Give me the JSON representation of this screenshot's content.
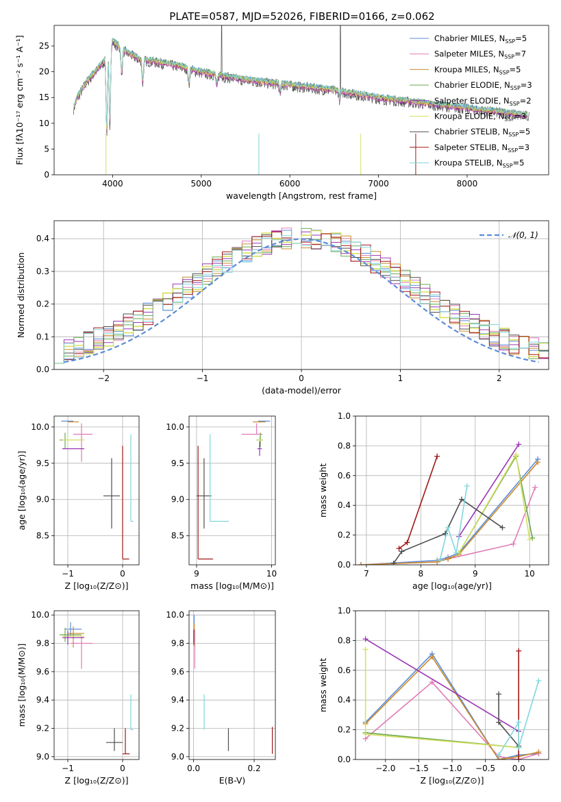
{
  "title": "PLATE=0587, MJD=52026, FIBERID=0166, z=0.062",
  "colors": {
    "Chabrier MILES": "#5b8bd8",
    "Salpeter MILES": "#e07bb5",
    "Kroupa MILES": "#c98a2c",
    "Chabrier ELODIE": "#6aa84f",
    "Salpeter ELODIE": "#9b33b5",
    "Kroupa ELODIE": "#d7e060",
    "Chabrier STELIB": "#4d4d4d",
    "Salpeter STELIB": "#a01515",
    "Kroupa STELIB": "#7fd6dc"
  },
  "chart_data": [
    {
      "id": "spectrum",
      "type": "line",
      "xlabel": "wavelength [Angstrom, rest frame]",
      "ylabel": "Flux [fλ10⁻¹⁷ erg cm⁻² s⁻¹ A⁻¹]",
      "xlim": [
        3340,
        8920
      ],
      "ylim": [
        0,
        29
      ],
      "xticks": [
        4000,
        5000,
        6000,
        7000,
        8000
      ],
      "yticks": [
        0,
        5,
        10,
        15,
        20,
        25
      ],
      "legend_position": "top-right",
      "legend": [
        "Chabrier MILES, N_SSP=5",
        "Salpeter MILES, N_SSP=7",
        "Kroupa MILES, N_SSP=5",
        "Chabrier ELODIE, N_SSP=3",
        "Salpeter ELODIE, N_SSP=2",
        "Kroupa ELODIE, N_SSP=3",
        "Chabrier STELIB, N_SSP=5",
        "Salpeter STELIB, N_SSP=3",
        "Kroupa STELIB, N_SSP=5"
      ],
      "continuum": {
        "x": [
          3560,
          3600,
          3700,
          3800,
          3900,
          3950,
          4000,
          4100,
          4200,
          4300,
          4500,
          4800,
          5000,
          5500,
          6000,
          6500,
          7000,
          7500,
          8000,
          8500,
          8700
        ],
        "y": [
          13,
          15,
          18,
          20,
          22,
          24,
          26,
          24.5,
          23.5,
          22.5,
          22,
          21,
          20,
          18.5,
          17.5,
          16.5,
          15,
          14,
          13,
          12,
          11.5
        ]
      }
    },
    {
      "id": "residuals",
      "type": "step",
      "xlabel": "(data-model)/error",
      "ylabel": "Normed distribution",
      "xlim": [
        -2.5,
        2.5
      ],
      "ylim": [
        0,
        0.455
      ],
      "xticks": [
        -2,
        -1,
        0,
        1,
        2
      ],
      "yticks": [
        0.0,
        0.1,
        0.2,
        0.3,
        0.4
      ],
      "reference_label": "𝒩(0, 1)",
      "legend_position": "top-right"
    },
    {
      "id": "age-vs-Z",
      "type": "errorbar",
      "xlabel": "Z [log₁₀(Z/Z⊙)]",
      "ylabel": "age  [log₁₀(age/yr)]",
      "xlim": [
        -1.25,
        0.3
      ],
      "ylim": [
        8.1,
        10.15
      ],
      "xticks": [
        -1,
        0
      ],
      "yticks": [
        8.5,
        9.0,
        9.5,
        10.0
      ],
      "points": [
        {
          "model": "Chabrier MILES",
          "x": -1.0,
          "xerr": [
            0.12,
            0.1
          ],
          "y": 10.08,
          "yerr": [
            0,
            0
          ]
        },
        {
          "model": "Kroupa MILES",
          "x": -0.9,
          "xerr": [
            0.1,
            0.1
          ],
          "y": 10.07,
          "yerr": [
            0,
            0
          ]
        },
        {
          "model": "Salpeter MILES",
          "x": -0.75,
          "xerr": [
            0.15,
            0.2
          ],
          "y": 9.9,
          "yerr": [
            0.38,
            0.15
          ]
        },
        {
          "model": "Chabrier ELODIE",
          "x": -1.05,
          "xerr": [
            0.1,
            0.35
          ],
          "y": 9.82,
          "yerr": [
            0.12,
            0.1
          ]
        },
        {
          "model": "Kroupa ELODIE",
          "x": -1.0,
          "xerr": [
            0.1,
            0.3
          ],
          "y": 9.82,
          "yerr": [
            0.05,
            0.05
          ]
        },
        {
          "model": "Salpeter ELODIE",
          "x": -1.0,
          "xerr": [
            0.1,
            0.3
          ],
          "y": 9.7,
          "yerr": [
            0,
            0
          ]
        },
        {
          "model": "Chabrier STELIB",
          "x": -0.2,
          "xerr": [
            0.15,
            0.15
          ],
          "y": 9.05,
          "yerr": [
            0.45,
            0.52
          ]
        },
        {
          "model": "Salpeter STELIB",
          "x": 0.0,
          "xerr": [
            0.0,
            0.12
          ],
          "y": 8.18,
          "yerr": [
            0,
            1.56
          ]
        },
        {
          "model": "Kroupa STELIB",
          "x": 0.15,
          "xerr": [
            0.0,
            0.05
          ],
          "y": 8.7,
          "yerr": [
            0,
            1.2
          ]
        }
      ]
    },
    {
      "id": "age-vs-mass",
      "type": "errorbar",
      "xlabel": "mass [log₁₀(M/M⊙)]",
      "ylabel": "",
      "xlim": [
        8.9,
        10.05
      ],
      "ylim": [
        8.1,
        10.15
      ],
      "xticks": [
        9,
        10
      ],
      "yticks": [
        8.5,
        9.0,
        9.5,
        10.0
      ],
      "points": [
        {
          "model": "Chabrier MILES",
          "x": 9.9,
          "xerr": [
            0.08,
            0.08
          ],
          "y": 10.08,
          "yerr": [
            0,
            0
          ]
        },
        {
          "model": "Kroupa MILES",
          "x": 9.87,
          "xerr": [
            0.12,
            0.05
          ],
          "y": 10.07,
          "yerr": [
            0,
            0
          ]
        },
        {
          "model": "Salpeter MILES",
          "x": 9.8,
          "xerr": [
            0.2,
            0.08
          ],
          "y": 9.9,
          "yerr": [
            0,
            0.15
          ]
        },
        {
          "model": "Chabrier ELODIE",
          "x": 9.85,
          "xerr": [
            0.05,
            0.03
          ],
          "y": 9.82,
          "yerr": [
            0.1,
            0.1
          ]
        },
        {
          "model": "Kroupa ELODIE",
          "x": 9.84,
          "xerr": [
            0.03,
            0.03
          ],
          "y": 9.82,
          "yerr": [
            0.05,
            0.05
          ]
        },
        {
          "model": "Salpeter ELODIE",
          "x": 9.84,
          "xerr": [
            0.03,
            0.03
          ],
          "y": 9.7,
          "yerr": [
            0.1,
            0.1
          ]
        },
        {
          "model": "Chabrier STELIB",
          "x": 9.1,
          "xerr": [
            0.1,
            0.1
          ],
          "y": 9.05,
          "yerr": [
            0.45,
            0.52
          ]
        },
        {
          "model": "Salpeter STELIB",
          "x": 9.02,
          "xerr": [
            0.0,
            0.2
          ],
          "y": 8.18,
          "yerr": [
            0,
            1.56
          ]
        },
        {
          "model": "Kroupa STELIB",
          "x": 9.18,
          "xerr": [
            0.0,
            0.25
          ],
          "y": 8.7,
          "yerr": [
            0,
            1.2
          ]
        }
      ]
    },
    {
      "id": "massweight-vs-age",
      "type": "line",
      "xlabel": "age  [log₁₀(age/yr)]",
      "ylabel": "mass weight",
      "xlim": [
        6.8,
        10.35
      ],
      "ylim": [
        0,
        1.0
      ],
      "xticks": [
        7,
        8,
        9,
        10
      ],
      "yticks": [
        0.0,
        0.2,
        0.4,
        0.6,
        0.8,
        1.0
      ],
      "series": [
        {
          "model": "Chabrier MILES",
          "x": [
            6.9,
            8.3,
            8.5,
            8.7,
            10.15
          ],
          "y": [
            0.0,
            0.03,
            0.05,
            0.08,
            0.71
          ]
        },
        {
          "model": "Salpeter MILES",
          "x": [
            6.9,
            8.3,
            8.5,
            9.7,
            10.1
          ],
          "y": [
            0.0,
            0.02,
            0.04,
            0.14,
            0.52
          ]
        },
        {
          "model": "Kroupa MILES",
          "x": [
            6.9,
            8.3,
            8.5,
            8.7,
            10.15
          ],
          "y": [
            0.0,
            0.02,
            0.04,
            0.07,
            0.69
          ]
        },
        {
          "model": "Chabrier ELODIE",
          "x": [
            8.7,
            9.75,
            10.05
          ],
          "y": [
            0.08,
            0.73,
            0.18
          ]
        },
        {
          "model": "Salpeter ELODIE",
          "x": [
            8.7,
            9.8
          ],
          "y": [
            0.19,
            0.81
          ]
        },
        {
          "model": "Kroupa ELODIE",
          "x": [
            8.7,
            9.75,
            10.0
          ],
          "y": [
            0.08,
            0.74,
            0.17
          ]
        },
        {
          "model": "Chabrier STELIB",
          "x": [
            7.5,
            7.65,
            8.45,
            8.75,
            9.5
          ],
          "y": [
            0.01,
            0.09,
            0.21,
            0.44,
            0.25
          ]
        },
        {
          "model": "Salpeter STELIB",
          "x": [
            7.6,
            7.75,
            8.3
          ],
          "y": [
            0.11,
            0.15,
            0.73
          ]
        },
        {
          "model": "Kroupa STELIB",
          "x": [
            8.35,
            8.5,
            8.65,
            8.85
          ],
          "y": [
            0.03,
            0.25,
            0.08,
            0.53
          ]
        }
      ]
    },
    {
      "id": "mass-vs-Z",
      "type": "errorbar",
      "xlabel": "Z [log₁₀(Z/Z⊙)]",
      "ylabel": "mass [log₁₀(M/M⊙)]",
      "xlim": [
        -1.25,
        0.3
      ],
      "ylim": [
        8.98,
        10.03
      ],
      "xticks": [
        -1,
        0
      ],
      "yticks": [
        9.0,
        9.2,
        9.4,
        9.6,
        9.8,
        10.0
      ],
      "points": [
        {
          "model": "Chabrier MILES",
          "x": -0.95,
          "xerr": [
            0.1,
            0.2
          ],
          "y": 9.9,
          "yerr": [
            0.05,
            0.05
          ]
        },
        {
          "model": "Kroupa MILES",
          "x": -0.9,
          "xerr": [
            0.1,
            0.2
          ],
          "y": 9.87,
          "yerr": [
            0.1,
            0.05
          ]
        },
        {
          "model": "Salpeter MILES",
          "x": -0.75,
          "xerr": [
            0.2,
            0.2
          ],
          "y": 9.8,
          "yerr": [
            0.18,
            0.05
          ]
        },
        {
          "model": "Chabrier ELODIE",
          "x": -1.05,
          "xerr": [
            0.1,
            0.3
          ],
          "y": 9.86,
          "yerr": [
            0.05,
            0.05
          ]
        },
        {
          "model": "Kroupa ELODIE",
          "x": -1.0,
          "xerr": [
            0.1,
            0.3
          ],
          "y": 9.85,
          "yerr": [
            0.05,
            0.05
          ]
        },
        {
          "model": "Salpeter ELODIE",
          "x": -1.0,
          "xerr": [
            0.1,
            0.3
          ],
          "y": 9.84,
          "yerr": [
            0.05,
            0.05
          ]
        },
        {
          "model": "Chabrier STELIB",
          "x": -0.15,
          "xerr": [
            0.15,
            0.15
          ],
          "y": 9.1,
          "yerr": [
            0.06,
            0.1
          ]
        },
        {
          "model": "Salpeter STELIB",
          "x": 0.05,
          "xerr": [
            0.05,
            0.08
          ],
          "y": 9.02,
          "yerr": [
            0,
            0.18
          ]
        },
        {
          "model": "Kroupa STELIB",
          "x": 0.15,
          "xerr": [
            0.0,
            0.05
          ],
          "y": 9.19,
          "yerr": [
            0,
            0.25
          ]
        }
      ]
    },
    {
      "id": "mass-vs-ebv",
      "type": "errorbar",
      "xlabel": "E(B-V)",
      "ylabel": "",
      "xlim": [
        -0.015,
        0.27
      ],
      "ylim": [
        8.98,
        10.03
      ],
      "xticks": [
        0.0,
        0.2
      ],
      "yticks": [
        9.0,
        9.2,
        9.4,
        9.6,
        9.8,
        10.0
      ],
      "points": [
        {
          "model": "Chabrier MILES",
          "x": 0.002,
          "xerr": [
            0,
            0
          ],
          "y": 9.92,
          "yerr": [
            0.08,
            0.08
          ]
        },
        {
          "model": "Kroupa MILES",
          "x": 0.002,
          "xerr": [
            0,
            0
          ],
          "y": 9.86,
          "yerr": [
            0.08,
            0.08
          ]
        },
        {
          "model": "Salpeter MILES",
          "x": 0.004,
          "xerr": [
            0,
            0
          ],
          "y": 9.8,
          "yerr": [
            0.18,
            0.1
          ]
        },
        {
          "model": "Chabrier ELODIE",
          "x": 0.0,
          "xerr": [
            0,
            0
          ],
          "y": 9.85,
          "yerr": [
            0.05,
            0.05
          ]
        },
        {
          "model": "Kroupa ELODIE",
          "x": 0.0,
          "xerr": [
            0,
            0
          ],
          "y": 9.83,
          "yerr": [
            0.05,
            0.05
          ]
        },
        {
          "model": "Salpeter ELODIE",
          "x": 0.0,
          "xerr": [
            0,
            0
          ],
          "y": 9.84,
          "yerr": [
            0.05,
            0.05
          ]
        },
        {
          "model": "Chabrier STELIB",
          "x": 0.115,
          "xerr": [
            0,
            0
          ],
          "y": 9.1,
          "yerr": [
            0.06,
            0.1
          ]
        },
        {
          "model": "Salpeter STELIB",
          "x": 0.26,
          "xerr": [
            0,
            0
          ],
          "y": 9.11,
          "yerr": [
            0.09,
            0.1
          ]
        },
        {
          "model": "Kroupa STELIB",
          "x": 0.035,
          "xerr": [
            0,
            0
          ],
          "y": 9.31,
          "yerr": [
            0.12,
            0.13
          ]
        }
      ]
    },
    {
      "id": "massweight-vs-Z",
      "type": "line",
      "xlabel": "Z [log₁₀(Z/Z⊙)]",
      "ylabel": "mass weight",
      "xlim": [
        -2.45,
        0.45
      ],
      "ylim": [
        0,
        1.0
      ],
      "xticks": [
        -2.0,
        -1.5,
        -1.0,
        -0.5,
        0.0
      ],
      "yticks": [
        0.0,
        0.2,
        0.4,
        0.6,
        0.8,
        1.0
      ],
      "series": [
        {
          "model": "Chabrier MILES",
          "x": [
            -2.3,
            -1.3,
            -0.3,
            0.0,
            0.3
          ],
          "y": [
            0.25,
            0.71,
            0.0,
            0.03,
            0.04
          ]
        },
        {
          "model": "Salpeter MILES",
          "x": [
            -2.3,
            -1.3,
            -0.3,
            0.0,
            0.3
          ],
          "y": [
            0.14,
            0.52,
            0.02,
            0.0,
            0.04
          ]
        },
        {
          "model": "Kroupa MILES",
          "x": [
            -2.3,
            -1.3,
            -0.3,
            0.0,
            0.3
          ],
          "y": [
            0.24,
            0.69,
            0.0,
            0.02,
            0.05
          ]
        },
        {
          "model": "Chabrier ELODIE",
          "x": [
            -2.3,
            0.0
          ],
          "y": [
            0.18,
            0.08
          ]
        },
        {
          "model": "Salpeter ELODIE",
          "x": [
            -2.3,
            0.0
          ],
          "y": [
            0.81,
            0.19
          ]
        },
        {
          "model": "Kroupa ELODIE",
          "x": [
            -2.3,
            -2.3,
            0.0
          ],
          "y": [
            0.74,
            0.17,
            0.08
          ]
        },
        {
          "model": "Chabrier STELIB",
          "x": [
            -0.3,
            -0.3,
            0.0,
            0.0
          ],
          "y": [
            0.44,
            0.25,
            0.09,
            0.0
          ]
        },
        {
          "model": "Salpeter STELIB",
          "x": [
            0.0,
            0.0
          ],
          "y": [
            0.73,
            0.0
          ]
        },
        {
          "model": "Kroupa STELIB",
          "x": [
            -0.3,
            0.0,
            0.0,
            0.3
          ],
          "y": [
            0.03,
            0.25,
            0.08,
            0.53
          ]
        }
      ]
    }
  ]
}
